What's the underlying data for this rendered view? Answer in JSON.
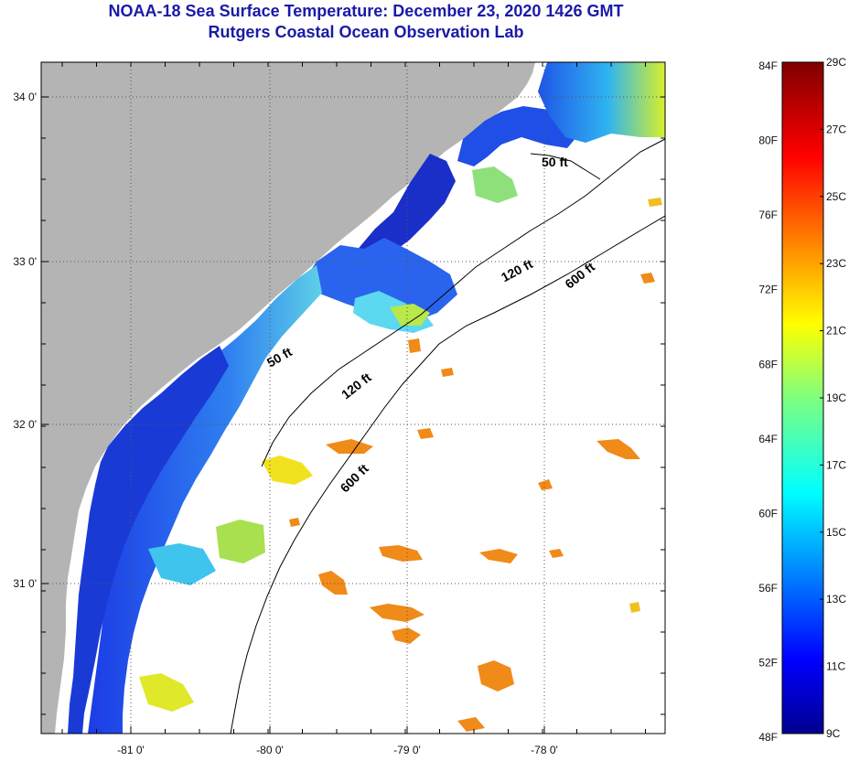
{
  "header": {
    "title": "NOAA-18 Sea Surface Temperature:  December 23, 2020 1426 GMT",
    "subtitle": "Rutgers Coastal Ocean Observation Lab"
  },
  "map": {
    "lat_labels": [
      "34 0'",
      "33 0'",
      "32 0'",
      "31 0'"
    ],
    "lon_labels": [
      "-81 0'",
      "-80 0'",
      "-79 0'",
      "-78 0'"
    ],
    "contours": [
      "50 ft",
      "120 ft",
      "600 ft"
    ],
    "colors": {
      "land": "#b4b4b4",
      "ocean_no_data": "#ffffff",
      "grid": "#555555",
      "title": "#1a1aa8"
    }
  },
  "colorbar": {
    "fahrenheit_labels": [
      "84F",
      "80F",
      "76F",
      "72F",
      "68F",
      "64F",
      "60F",
      "56F",
      "52F",
      "48F"
    ],
    "celsius_labels": [
      "29C",
      "27C",
      "25C",
      "23C",
      "21C",
      "19C",
      "17C",
      "15C",
      "13C",
      "11C",
      "9C"
    ],
    "range_c": [
      9,
      29
    ],
    "colormap": "jet"
  }
}
